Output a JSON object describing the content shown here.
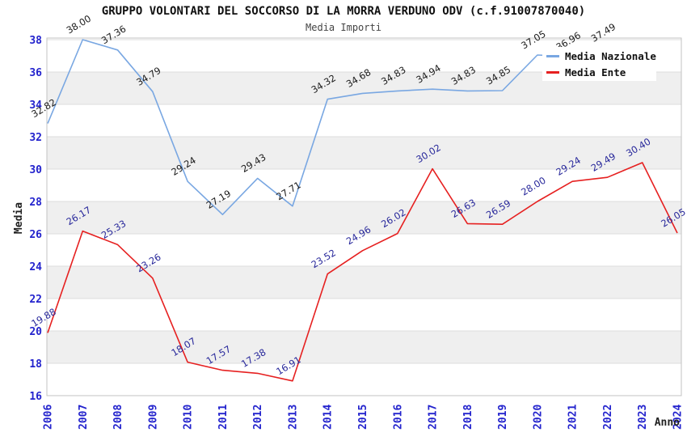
{
  "chart_data": {
    "type": "line",
    "title": "GRUPPO VOLONTARI DEL SOCCORSO DI LA MORRA VERDUNO ODV (c.f.91007870040)",
    "subtitle": "Media Importi",
    "xlabel": "Anno",
    "ylabel": "Media",
    "ylim": [
      16,
      38
    ],
    "ytick_step": 2,
    "grid": "horizontal gridlines with alternating gray bands",
    "legend_position": "top-right",
    "x": [
      "2006",
      "2007",
      "2008",
      "2009",
      "2010",
      "2011",
      "2012",
      "2013",
      "2014",
      "2015",
      "2016",
      "2017",
      "2018",
      "2019",
      "2020",
      "2021",
      "2022",
      "2023",
      "2024"
    ],
    "series": [
      {
        "name": "Media Nazionale",
        "color": "#79a7e2",
        "label_color": "#1c1c1c",
        "values": [
          32.82,
          38.0,
          37.36,
          34.79,
          29.24,
          27.19,
          29.43,
          27.71,
          34.32,
          34.68,
          34.83,
          34.94,
          34.83,
          34.85,
          37.05,
          36.96,
          37.49,
          null,
          null
        ]
      },
      {
        "name": "Media Ente",
        "color": "#e62020",
        "label_color": "#28289b",
        "values": [
          19.88,
          26.17,
          25.33,
          23.26,
          18.07,
          17.57,
          17.38,
          16.91,
          23.52,
          24.96,
          26.02,
          30.02,
          26.63,
          26.59,
          28.0,
          29.24,
          29.49,
          30.4,
          26.05
        ]
      }
    ],
    "colors": {
      "axis_tick_color": "#2323cd",
      "band_color": "#efefef",
      "gridline_color": "#dcdcdc",
      "plot_border_color": "#c3c3c3"
    }
  }
}
